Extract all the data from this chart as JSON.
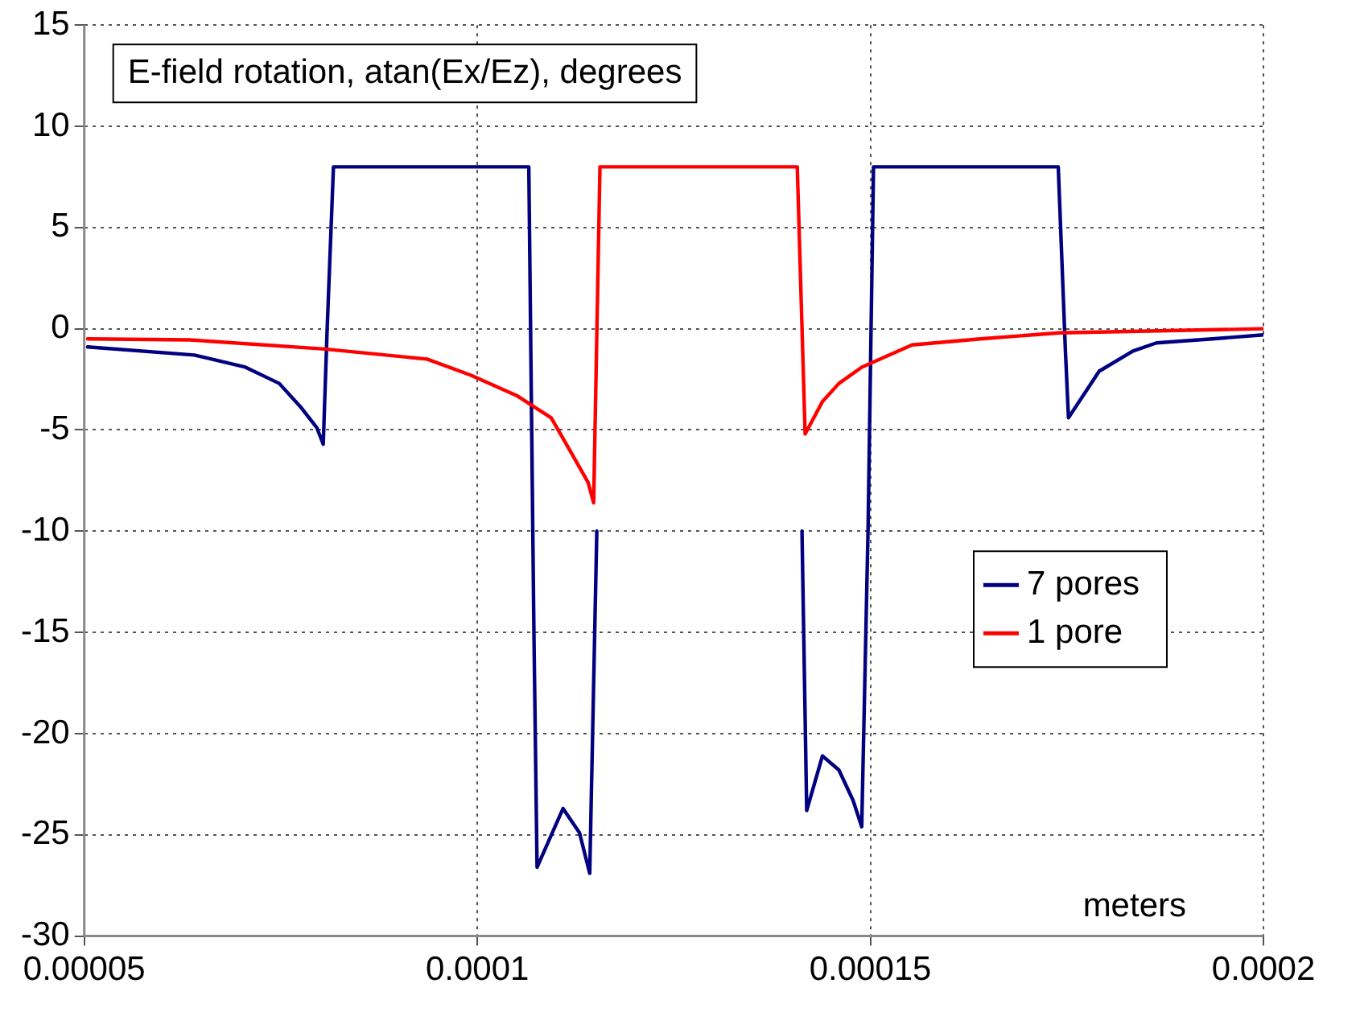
{
  "chart_data": {
    "type": "line",
    "title": "E-field rotation, atan(Ex/Ez), degrees",
    "xlabel": "meters",
    "xlim": [
      5e-05,
      0.0002
    ],
    "xticks": [
      {
        "value": 5e-05,
        "label": "0.00005"
      },
      0.0001,
      0.00015,
      0.0002
    ],
    "ylim": [
      -30,
      15
    ],
    "yticks": [
      -30,
      -25,
      -20,
      -15,
      -10,
      -5,
      0,
      5,
      10,
      15
    ],
    "grid": true,
    "legend": "right",
    "marker": "none",
    "line_style": "solid",
    "series": [
      {
        "name": "7 pores",
        "color": "#000080",
        "x": [
          5.043e-05,
          6.4e-05,
          7.05e-05,
          7.48e-05,
          7.76e-05,
          7.96e-05,
          8.04e-05,
          8.09e-05,
          8.17e-05,
          0.00010655,
          0.0001072,
          0.0001076,
          0.0001109,
          0.000113,
          0.0001143,
          0.0001152,
          0.0001156,
          0.0001407,
          0.0001413,
          0.0001419,
          0.0001439,
          0.000146,
          0.0001478,
          0.0001489,
          0.0001497,
          0.0001504,
          0.0001739,
          0.0001748,
          0.0001752,
          0.0001791,
          0.0001834,
          0.0001864,
          0.0001935,
          0.0002
        ],
        "values": [
          -0.9,
          -1.3,
          -1.9,
          -2.7,
          -3.9,
          -4.9,
          -5.7,
          0,
          8,
          8,
          -15,
          -26.6,
          -23.7,
          -24.9,
          -26.9,
          -10,
          null,
          null,
          -10,
          -23.8,
          -21.1,
          -21.8,
          -23.3,
          -24.6,
          -10,
          8,
          8,
          -1,
          -4.4,
          -2.1,
          -1.1,
          -0.7,
          -0.5,
          -0.3
        ]
      },
      {
        "name": "1 pore",
        "color": "#ff0000",
        "x": [
          5.043e-05,
          6.34e-05,
          8.06e-05,
          9.36e-05,
          9.92e-05,
          0.000105,
          0.0001094,
          0.0001122,
          0.0001141,
          0.0001148,
          0.0001156,
          0.0001407,
          0.0001417,
          0.0001439,
          0.000146,
          0.0001489,
          0.0001553,
          0.000164,
          0.0001741,
          0.0002
        ],
        "values": [
          -0.5,
          -0.55,
          -1.0,
          -1.5,
          -2.3,
          -3.3,
          -4.4,
          -6.3,
          -7.6,
          -8.6,
          8,
          8,
          -5.2,
          -3.6,
          -2.7,
          -1.9,
          -0.8,
          -0.5,
          -0.2,
          0
        ]
      }
    ]
  }
}
